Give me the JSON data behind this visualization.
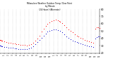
{
  "title_line1": "Milwaukee Weather Outdoor Temp / Dew Point",
  "title_line2": "by Minute",
  "title_line3": "(24 Hours) (Alternate)",
  "bg_color": "#ffffff",
  "grid_color": "#aaaaaa",
  "temp_color": "#ff0000",
  "dew_color": "#0000cc",
  "ylim": [
    20,
    80
  ],
  "xlim": [
    0,
    1440
  ],
  "yticks": [
    20,
    30,
    40,
    50,
    60,
    70,
    80
  ],
  "ytick_labels": [
    "20",
    "30",
    "40",
    "50",
    "60",
    "70",
    "80"
  ],
  "xtick_positions": [
    0,
    60,
    120,
    180,
    240,
    300,
    360,
    420,
    480,
    540,
    600,
    660,
    720,
    780,
    840,
    900,
    960,
    1020,
    1080,
    1140,
    1200,
    1260,
    1320,
    1380,
    1440
  ],
  "xtick_labels": [
    "12",
    "1",
    "2",
    "3",
    "4",
    "5",
    "6",
    "7",
    "8",
    "9",
    "10",
    "11",
    "12",
    "1",
    "2",
    "3",
    "4",
    "5",
    "6",
    "7",
    "8",
    "9",
    "10",
    "11",
    "12"
  ],
  "temp_data": [
    [
      0,
      38
    ],
    [
      10,
      38
    ],
    [
      20,
      37
    ],
    [
      30,
      37
    ],
    [
      60,
      36
    ],
    [
      90,
      35
    ],
    [
      120,
      34
    ],
    [
      150,
      34
    ],
    [
      180,
      33
    ],
    [
      210,
      33
    ],
    [
      240,
      32
    ],
    [
      270,
      32
    ],
    [
      300,
      31
    ],
    [
      330,
      31
    ],
    [
      360,
      31
    ],
    [
      390,
      30
    ],
    [
      420,
      31
    ],
    [
      450,
      32
    ],
    [
      480,
      34
    ],
    [
      510,
      37
    ],
    [
      540,
      40
    ],
    [
      570,
      44
    ],
    [
      600,
      49
    ],
    [
      630,
      53
    ],
    [
      660,
      57
    ],
    [
      690,
      60
    ],
    [
      720,
      62
    ],
    [
      750,
      64
    ],
    [
      780,
      65
    ],
    [
      810,
      66
    ],
    [
      840,
      65
    ],
    [
      860,
      64
    ],
    [
      870,
      63
    ],
    [
      900,
      61
    ],
    [
      930,
      58
    ],
    [
      960,
      55
    ],
    [
      990,
      52
    ],
    [
      1020,
      50
    ],
    [
      1050,
      48
    ],
    [
      1080,
      46
    ],
    [
      1110,
      44
    ],
    [
      1140,
      43
    ],
    [
      1170,
      41
    ],
    [
      1200,
      40
    ],
    [
      1230,
      38
    ],
    [
      1260,
      37
    ],
    [
      1290,
      36
    ],
    [
      1320,
      35
    ],
    [
      1350,
      34
    ],
    [
      1380,
      53
    ],
    [
      1400,
      55
    ],
    [
      1420,
      55
    ],
    [
      1440,
      54
    ]
  ],
  "dew_data": [
    [
      0,
      30
    ],
    [
      10,
      30
    ],
    [
      20,
      29
    ],
    [
      30,
      29
    ],
    [
      60,
      28
    ],
    [
      90,
      28
    ],
    [
      120,
      27
    ],
    [
      150,
      27
    ],
    [
      180,
      27
    ],
    [
      210,
      26
    ],
    [
      240,
      26
    ],
    [
      270,
      25
    ],
    [
      300,
      25
    ],
    [
      330,
      25
    ],
    [
      360,
      25
    ],
    [
      390,
      25
    ],
    [
      420,
      26
    ],
    [
      450,
      27
    ],
    [
      480,
      29
    ],
    [
      510,
      32
    ],
    [
      540,
      35
    ],
    [
      570,
      38
    ],
    [
      600,
      41
    ],
    [
      630,
      44
    ],
    [
      660,
      47
    ],
    [
      690,
      49
    ],
    [
      720,
      50
    ],
    [
      750,
      51
    ],
    [
      780,
      52
    ],
    [
      810,
      52
    ],
    [
      840,
      51
    ],
    [
      870,
      50
    ],
    [
      900,
      48
    ],
    [
      930,
      46
    ],
    [
      960,
      43
    ],
    [
      990,
      41
    ],
    [
      1020,
      39
    ],
    [
      1050,
      37
    ],
    [
      1080,
      36
    ],
    [
      1110,
      35
    ],
    [
      1140,
      34
    ],
    [
      1170,
      33
    ],
    [
      1200,
      32
    ],
    [
      1230,
      31
    ],
    [
      1260,
      30
    ],
    [
      1290,
      29
    ],
    [
      1320,
      29
    ],
    [
      1350,
      28
    ],
    [
      1380,
      40
    ],
    [
      1400,
      42
    ],
    [
      1420,
      43
    ],
    [
      1440,
      43
    ]
  ]
}
